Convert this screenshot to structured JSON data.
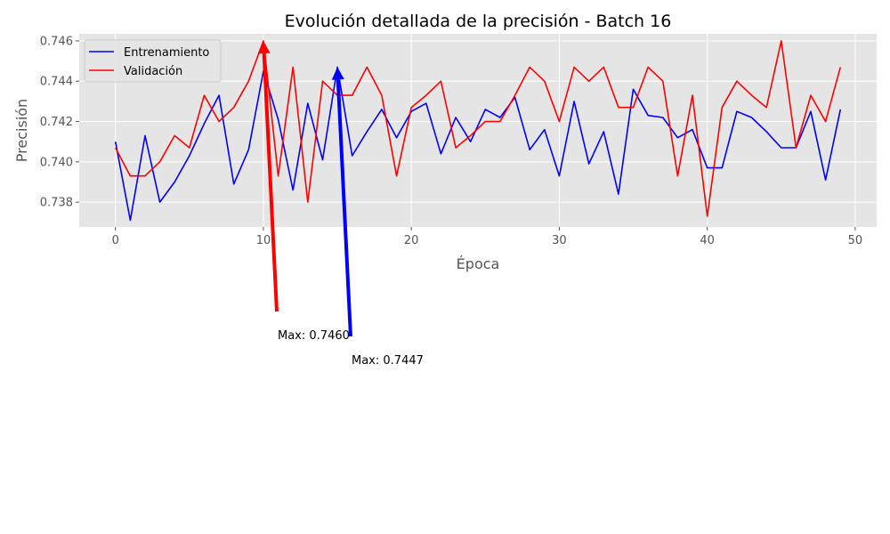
{
  "chart_data": {
    "type": "line",
    "title": "Evolución detallada de la precisión - Batch 16",
    "xlabel": "Época",
    "ylabel": "Precisión",
    "xlim": [
      -2.45,
      51.45
    ],
    "ylim": [
      0.73677,
      0.74635
    ],
    "grid": true,
    "legend_position": "upper-left",
    "x_ticks": [
      0,
      10,
      20,
      30,
      40,
      50
    ],
    "y_ticks": [
      0.738,
      0.74,
      0.742,
      0.744,
      0.746
    ],
    "x_tick_labels": [
      "0",
      "10",
      "20",
      "30",
      "40",
      "50"
    ],
    "y_tick_labels": [
      "0.738",
      "0.740",
      "0.742",
      "0.744",
      "0.746"
    ],
    "x": [
      0,
      1,
      2,
      3,
      4,
      5,
      6,
      7,
      8,
      9,
      10,
      11,
      12,
      13,
      14,
      15,
      16,
      17,
      18,
      19,
      20,
      21,
      22,
      23,
      24,
      25,
      26,
      27,
      28,
      29,
      30,
      31,
      32,
      33,
      34,
      35,
      36,
      37,
      38,
      39,
      40,
      41,
      42,
      43,
      44,
      45,
      46,
      47,
      48,
      49
    ],
    "series": [
      {
        "name": "Entrenamiento",
        "color": "#0000ff",
        "values": [
          0.741,
          0.7371,
          0.7413,
          0.738,
          0.739,
          0.7403,
          0.7419,
          0.7433,
          0.7389,
          0.7406,
          0.7445,
          0.7421,
          0.7386,
          0.7429,
          0.7401,
          0.7447,
          0.7403,
          0.7415,
          0.7426,
          0.7412,
          0.7425,
          0.7429,
          0.7404,
          0.7422,
          0.741,
          0.7426,
          0.7422,
          0.7432,
          0.7406,
          0.7416,
          0.7393,
          0.743,
          0.7399,
          0.7415,
          0.7384,
          0.7436,
          0.7423,
          0.7422,
          0.7412,
          0.7416,
          0.7397,
          0.7397,
          0.7425,
          0.7422,
          0.7415,
          0.7407,
          0.7407,
          0.7425,
          0.7391,
          0.7426
        ]
      },
      {
        "name": "Validación",
        "color": "#ff0000",
        "values": [
          0.7407,
          0.7393,
          0.7393,
          0.74,
          0.7413,
          0.7407,
          0.7433,
          0.742,
          0.7427,
          0.744,
          0.746,
          0.7393,
          0.7447,
          0.738,
          0.744,
          0.7433,
          0.7433,
          0.7447,
          0.7433,
          0.7393,
          0.7427,
          0.7433,
          0.744,
          0.7407,
          0.7413,
          0.742,
          0.742,
          0.7433,
          0.7447,
          0.744,
          0.742,
          0.7447,
          0.744,
          0.7447,
          0.7427,
          0.7427,
          0.7447,
          0.744,
          0.7393,
          0.7433,
          0.7373,
          0.7427,
          0.744,
          0.7433,
          0.7427,
          0.746,
          0.7407,
          0.7433,
          0.742,
          0.7447
        ]
      }
    ],
    "annotations": [
      {
        "text": "Max: 0.7460",
        "x": 10,
        "y": 0.746,
        "color": "#ff0000"
      },
      {
        "text": "Max: 0.7447",
        "x": 15,
        "y": 0.7447,
        "color": "#0000ff"
      }
    ]
  }
}
